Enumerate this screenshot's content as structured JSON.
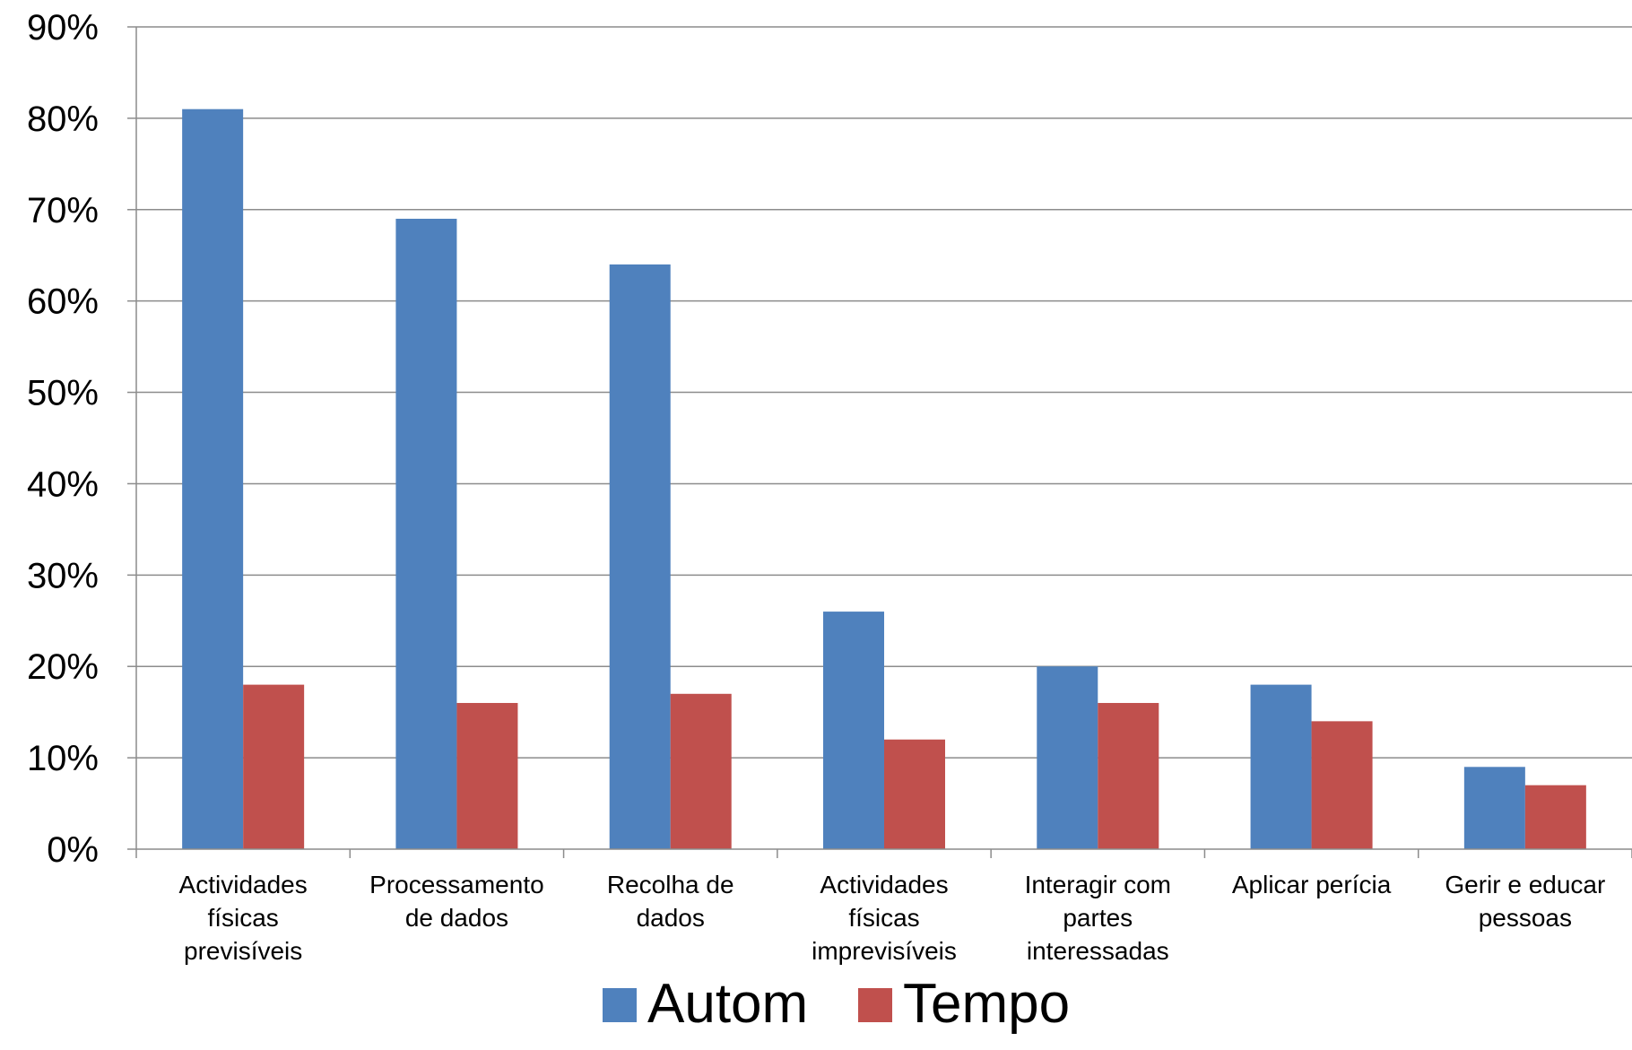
{
  "chart_data": {
    "type": "bar",
    "categories": [
      [
        "Actividades",
        "físicas",
        "previsíveis"
      ],
      [
        "Processamento",
        "de dados"
      ],
      [
        "Recolha de",
        "dados"
      ],
      [
        "Actividades",
        "físicas",
        "imprevisíveis"
      ],
      [
        "Interagir com",
        "partes",
        "interessadas"
      ],
      [
        "Aplicar perícia"
      ],
      [
        "Gerir e educar",
        "pessoas"
      ]
    ],
    "series": [
      {
        "name": "Autom",
        "color": "#4f81bd",
        "values": [
          81,
          69,
          64,
          26,
          20,
          18,
          9
        ]
      },
      {
        "name": "Tempo",
        "color": "#c0504d",
        "values": [
          18,
          16,
          17,
          12,
          16,
          14,
          7
        ]
      }
    ],
    "ylim": [
      0,
      90
    ],
    "yticks": [
      0,
      10,
      20,
      30,
      40,
      50,
      60,
      70,
      80,
      90
    ],
    "ytick_suffix": "%",
    "grid": true,
    "legend_position": "bottom"
  }
}
